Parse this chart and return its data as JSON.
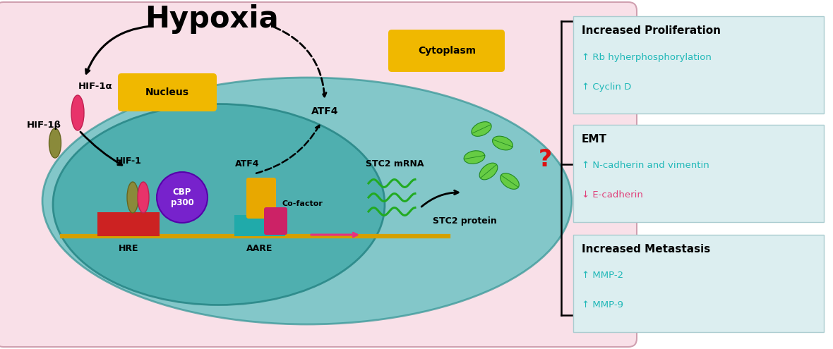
{
  "bg_color": "#f9e0e8",
  "cell_color": "#5bbfbf",
  "cell_alpha": 0.75,
  "nucleus_color": "#4aadad",
  "nucleus_alpha": 0.85,
  "panel_bg": "#dceef0",
  "panel_border": "#aaccd0",
  "title": "Hypoxia",
  "cytoplasm_label": "Cytoplasm",
  "nucleus_label": "Nucleus",
  "hif1a_label": "HIF-1α",
  "hif1b_label": "HIF-1β",
  "hif1_label": "HIF-1",
  "cbp_label": "CBP\np300",
  "atf4_label_top": "ATF4",
  "atf4_label_inner": "ATF4",
  "cofactor_label": "Co-factor",
  "hre_label": "HRE",
  "aare_label": "AARE",
  "stc2mrna_label": "STC2 mRNA",
  "stc2protein_label": "STC2 protein",
  "question_mark": "?",
  "panel1_title": "Increased Proliferation",
  "panel1_items": [
    "↑ Rb hyherphosphorylation",
    "↑ Cyclin D"
  ],
  "panel1_colors": [
    "#20b8b8",
    "#20b8b8"
  ],
  "panel2_title": "EMT",
  "panel2_items": [
    "↑ N-cadherin and vimentin",
    "↓ E-cadherin"
  ],
  "panel2_colors": [
    "#20b8b8",
    "#e0407a"
  ],
  "panel3_title": "Increased Metastasis",
  "panel3_items": [
    "↑ MMP-2",
    "↑ MMP-9"
  ],
  "panel3_colors": [
    "#20b8b8",
    "#20b8b8"
  ],
  "cytoplasm_box_color": "#f0b800",
  "nucleus_box_color": "#f0b800"
}
